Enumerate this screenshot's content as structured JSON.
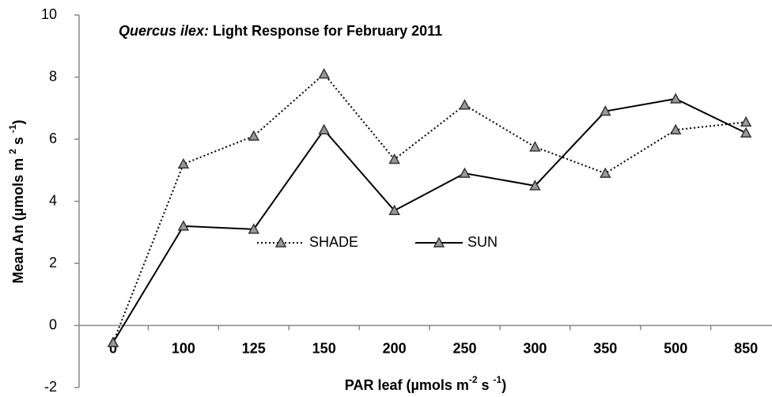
{
  "chart_data": {
    "type": "line",
    "title_species": "Quercus ilex:",
    "title": "Light Response for February 2011",
    "xlabel": [
      "PAR leaf (µmols m",
      "-2",
      " s ",
      "-1",
      ")"
    ],
    "ylabel": [
      "Mean An (µmols m ",
      "2",
      " s ",
      "-1",
      ")"
    ],
    "categories": [
      "0",
      "100",
      "125",
      "150",
      "200",
      "250",
      "300",
      "350",
      "500",
      "850"
    ],
    "series": [
      {
        "name": "SHADE",
        "color": "#000000",
        "dash": "dotted",
        "values": [
          -0.55,
          5.2,
          6.1,
          8.1,
          5.35,
          7.1,
          5.75,
          4.9,
          6.3,
          6.55
        ]
      },
      {
        "name": "SUN",
        "color": "#000000",
        "dash": "solid",
        "values": [
          -0.55,
          3.2,
          3.1,
          6.3,
          3.7,
          4.9,
          4.5,
          6.9,
          7.3,
          6.2
        ]
      }
    ],
    "ylim": [
      -2,
      10
    ],
    "yticks": [
      -2,
      0,
      2,
      4,
      6,
      8,
      10
    ],
    "grid": false
  }
}
